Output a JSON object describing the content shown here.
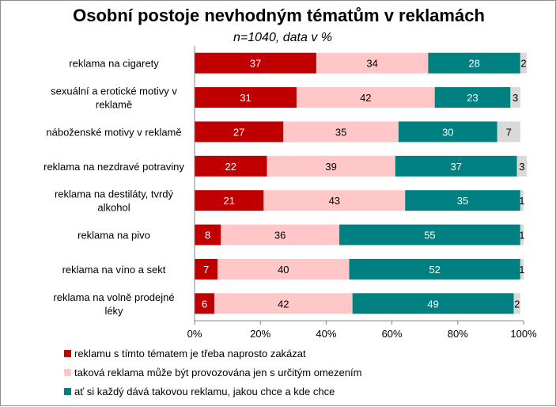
{
  "chart_data": {
    "type": "bar",
    "stacked": true,
    "orientation": "horizontal",
    "title": "Osobní postoje  nevhodným tématům v reklamách",
    "subtitle": "n=1040, data v %",
    "categories": [
      "reklama na cigarety",
      "sexuální a erotické motivy v reklamě",
      "náboženské motivy v reklamě",
      "reklama na nezdravé potraviny",
      "reklama na destiláty, tvrdý alkohol",
      "reklama na pivo",
      "reklama na víno a sekt",
      "reklama na volně prodejné léky"
    ],
    "series": [
      {
        "name": "reklamu s tímto tématem je třeba naprosto zakázat",
        "color": "#c00000",
        "label_color": "#ffffff",
        "values": [
          37,
          31,
          27,
          22,
          21,
          8,
          7,
          6
        ]
      },
      {
        "name": "taková reklama může být provozována jen s určitým omezením",
        "color": "#ffc7c7",
        "label_color": "#000000",
        "values": [
          34,
          42,
          35,
          39,
          43,
          36,
          40,
          42
        ]
      },
      {
        "name": "ať si každý dává takovou reklamu, jakou chce a kde chce",
        "color": "#008080",
        "label_color": "#ffffff",
        "values": [
          28,
          23,
          30,
          37,
          35,
          55,
          52,
          49
        ]
      },
      {
        "name": "",
        "color": "#d9d9d9",
        "label_color": "#000000",
        "values": [
          2,
          3,
          7,
          3,
          1,
          1,
          1,
          2
        ]
      }
    ],
    "xlim": [
      0,
      100
    ],
    "xticks": [
      "0%",
      "20%",
      "40%",
      "60%",
      "80%",
      "100%"
    ],
    "grid": false,
    "legend_position": "bottom"
  }
}
